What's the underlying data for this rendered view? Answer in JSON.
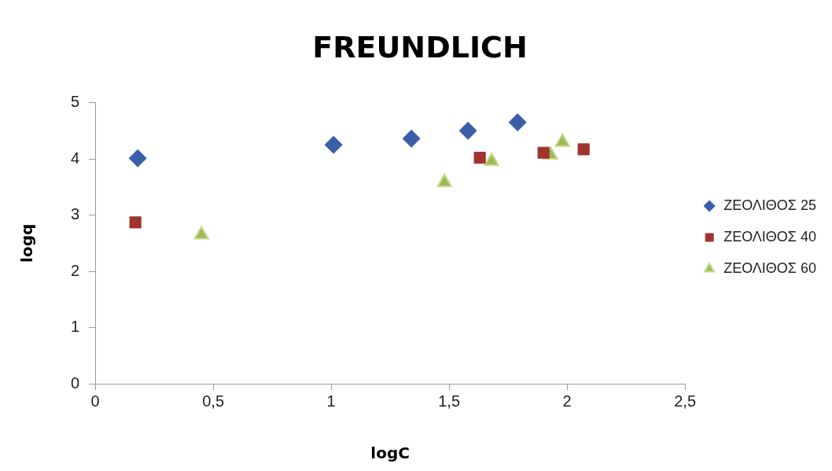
{
  "chart_data": {
    "type": "scatter",
    "title": "FREUNDLICH",
    "xlabel": "logC",
    "ylabel": "logq",
    "xlim": [
      0,
      2.5
    ],
    "xticks": [
      0,
      {
        "value": 0.5,
        "label": "0,5"
      },
      1,
      {
        "value": 1.5,
        "label": "1,5"
      },
      2,
      {
        "value": 2.5,
        "label": "2,5"
      }
    ],
    "ylim": [
      0,
      5
    ],
    "yticks": [
      0,
      1,
      2,
      3,
      4,
      5
    ],
    "grid": false,
    "legend": "right",
    "series": [
      {
        "name": "ΖΕΟΛΙΘΟΣ 25",
        "color": "#3a5fa8",
        "marker": "diamond",
        "x": [
          0.18,
          1.01,
          1.34,
          1.58,
          1.79
        ],
        "values": [
          4.01,
          4.25,
          4.36,
          4.5,
          4.65
        ]
      },
      {
        "name": "ΖΕΟΛΙΘΟΣ 40",
        "color": "#a0342f",
        "marker": "square",
        "x": [
          0.17,
          1.63,
          1.9,
          2.07
        ],
        "values": [
          2.87,
          4.02,
          4.11,
          4.17
        ]
      },
      {
        "name": "ΖΕΟΛΙΘΟΣ 60",
        "color": "#9bbb59",
        "marker": "triangle",
        "x": [
          0.45,
          1.48,
          1.68,
          1.93,
          1.98
        ],
        "values": [
          2.65,
          3.58,
          3.96,
          4.07,
          4.3
        ]
      }
    ]
  }
}
